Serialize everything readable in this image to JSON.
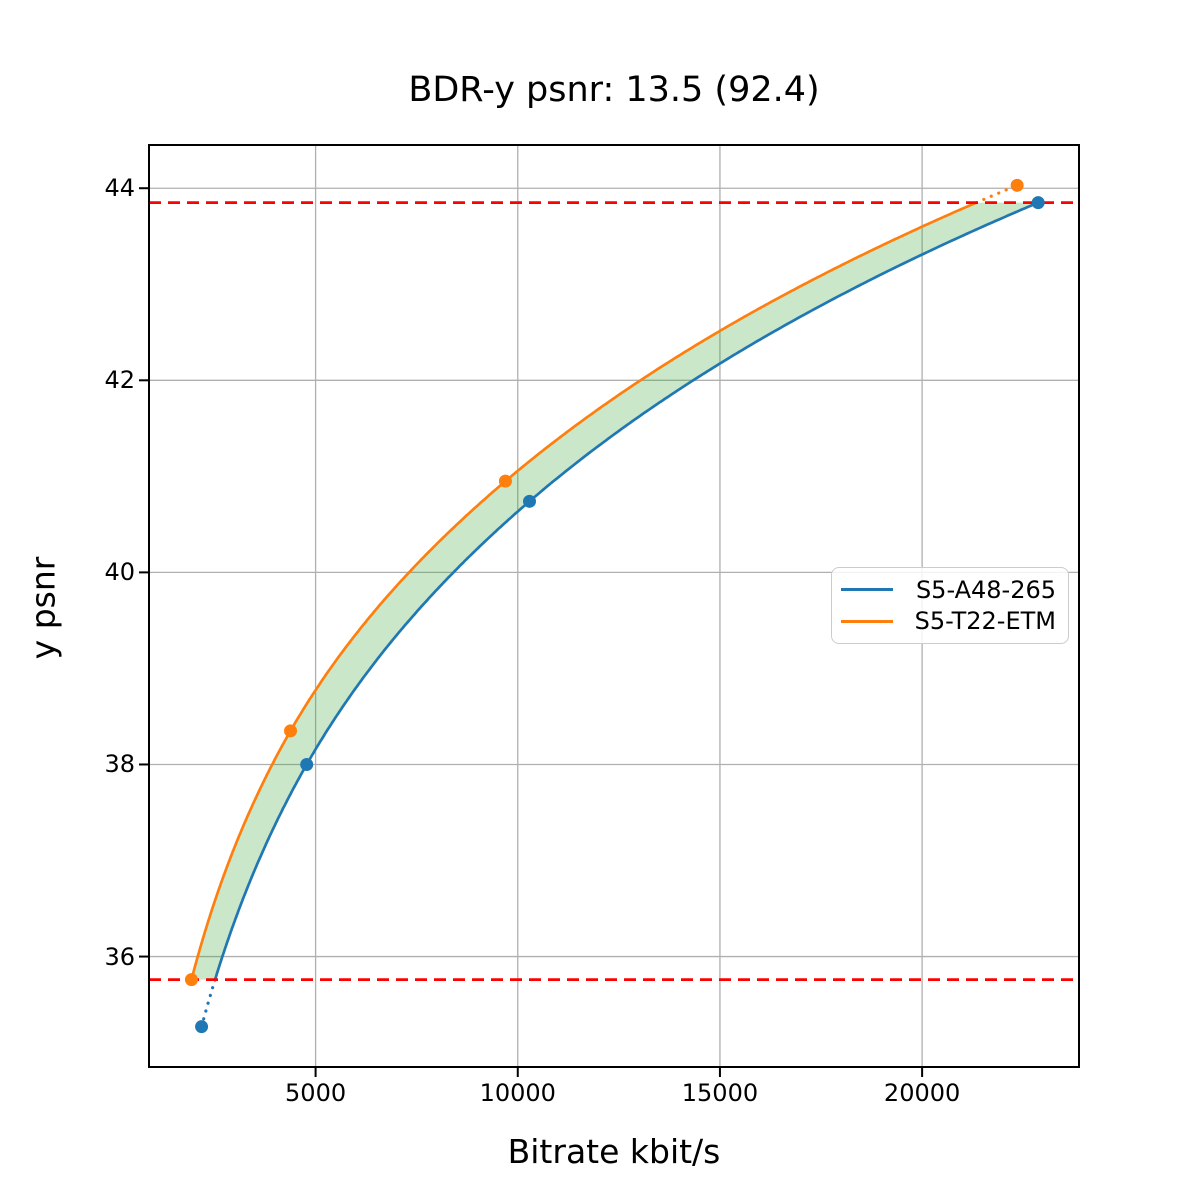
{
  "chart_data": {
    "type": "line",
    "title": "BDR-y psnr: 13.5 (92.4)",
    "xlabel": "Bitrate kbit/s",
    "ylabel": "y psnr",
    "xlim": [
      880,
      23880
    ],
    "ylim": [
      34.85,
      44.45
    ],
    "x_ticks": [
      "5000",
      "10000",
      "15000",
      "20000"
    ],
    "x_tick_values": [
      5000,
      10000,
      15000,
      20000
    ],
    "y_ticks": [
      "36",
      "38",
      "40",
      "42",
      "44"
    ],
    "y_tick_values": [
      36,
      38,
      40,
      42,
      44
    ],
    "grid": true,
    "grid_color": "#b0b0b0",
    "legend": {
      "position": "center-right",
      "entries": [
        "S5-A48-265",
        "S5-T22-ETM"
      ]
    },
    "series": [
      {
        "name": "S5-A48-265",
        "color": "#1f77b4",
        "points": [
          [
            2180,
            35.27
          ],
          [
            4780,
            38.0
          ],
          [
            10290,
            40.74
          ],
          [
            22870,
            43.85
          ]
        ]
      },
      {
        "name": "S5-T22-ETM",
        "color": "#ff7f0e",
        "points": [
          [
            1930,
            35.76
          ],
          [
            4380,
            38.35
          ],
          [
            9695,
            40.95
          ],
          [
            22350,
            44.03
          ]
        ]
      }
    ],
    "bd_bounds": {
      "lower_psnr": 35.76,
      "upper_psnr": 43.85,
      "line_color": "#ff0000",
      "line_style": "dashed"
    },
    "shaded_region": {
      "between": [
        "S5-T22-ETM",
        "S5-A48-265"
      ],
      "color": "rgba(44,160,44,0.25)"
    }
  }
}
